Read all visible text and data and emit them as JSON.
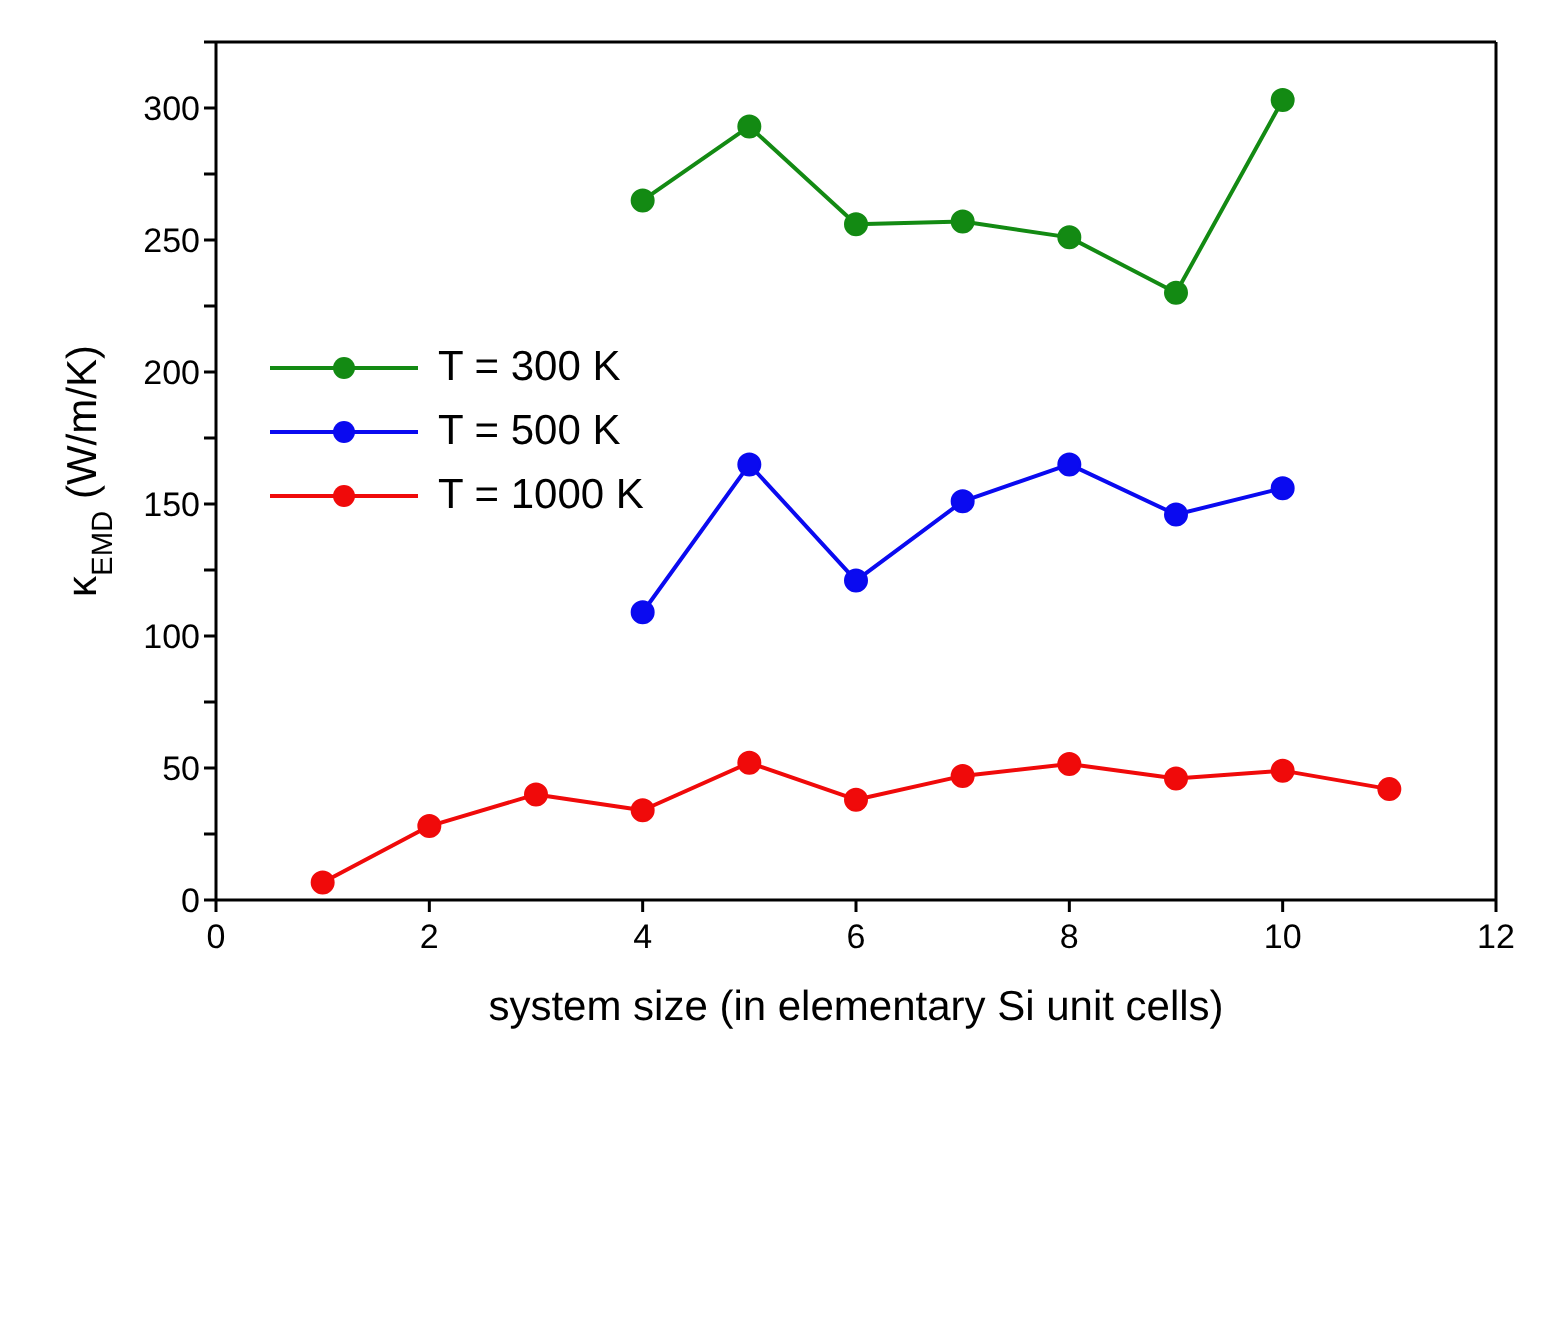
{
  "chart_data": {
    "type": "line",
    "xlabel": "system size (in elementary Si unit cells)",
    "ylabel": "κ$_{EMD}$ (W/m/K)",
    "xlim": [
      0,
      12
    ],
    "xticks": [
      0,
      2,
      4,
      6,
      8,
      10,
      12
    ],
    "ylim": [
      0,
      325
    ],
    "yticks": [
      0,
      {
        "value": 25,
        "label": null
      },
      50,
      {
        "value": 75,
        "label": null
      },
      100,
      {
        "value": 125,
        "label": null
      },
      150,
      {
        "value": 175,
        "label": null
      },
      200,
      {
        "value": 225,
        "label": null
      },
      250,
      {
        "value": 275,
        "label": null
      },
      300,
      {
        "value": 325,
        "label": null
      }
    ],
    "marker": "circle",
    "line_style": "solid",
    "legend": "left",
    "series": [
      {
        "name": "T = 300 K",
        "color": "#138a13",
        "x": [
          4,
          5,
          6,
          7,
          8,
          9,
          10
        ],
        "values": [
          265,
          293,
          256,
          257,
          251,
          230,
          303
        ]
      },
      {
        "name": "T = 500 K",
        "color": "#0a0af0",
        "x": [
          4,
          5,
          6,
          7,
          8,
          9,
          10
        ],
        "values": [
          109,
          165,
          121,
          151,
          165,
          146,
          156
        ]
      },
      {
        "name": "T = 1000 K",
        "color": "#f00a0a",
        "x": [
          1,
          2,
          3,
          4,
          5,
          6,
          7,
          8,
          9,
          10,
          11
        ],
        "values": [
          6.6,
          28,
          40,
          34,
          52,
          38,
          47,
          51.5,
          46,
          49,
          42
        ]
      }
    ]
  }
}
